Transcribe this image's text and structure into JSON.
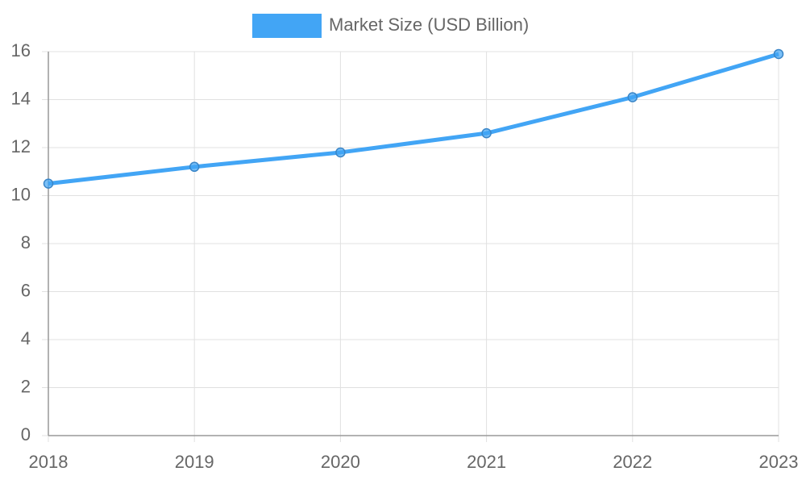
{
  "chart_data": {
    "type": "line",
    "categories": [
      "2018",
      "2019",
      "2020",
      "2021",
      "2022",
      "2023"
    ],
    "series": [
      {
        "name": "Market Size (USD Billion)",
        "color": "#42a5f5",
        "values": [
          10.5,
          11.2,
          11.8,
          12.6,
          14.1,
          15.9
        ]
      }
    ],
    "ylim": [
      0,
      16
    ],
    "yticks": [
      0,
      2,
      4,
      6,
      8,
      10,
      12,
      14,
      16
    ],
    "grid": true,
    "legend": "top"
  }
}
